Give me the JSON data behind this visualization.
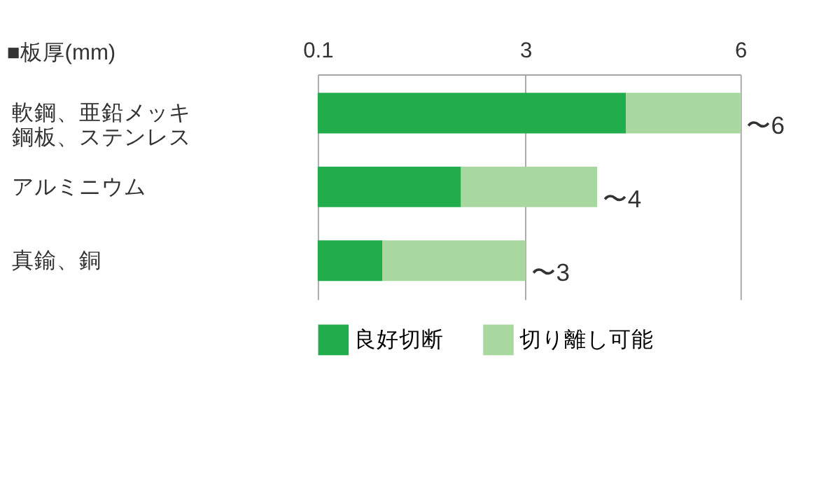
{
  "chart_data": {
    "type": "bar",
    "orientation": "horizontal",
    "stacked": true,
    "categories": [
      "軟鋼、亜鉛メッキ鋼板、ステンレス",
      "アルミニウム",
      "真鍮、銅"
    ],
    "series": [
      {
        "name": "良好切断",
        "color": "#21ad4b",
        "values": [
          4.4,
          2.1,
          1.0
        ]
      },
      {
        "name": "切り離し可能",
        "color": "#a8d8a0",
        "values": [
          1.6,
          1.9,
          2.0
        ]
      }
    ],
    "xlim": [
      0.1,
      6
    ],
    "xticks": [
      0.1,
      3,
      6
    ],
    "grid": "x",
    "legend": "bottom",
    "annotations": [
      "■板厚(mm)",
      {
        "text": "〜6",
        "x": 6,
        "y": "軟鋼、亜鉛メッキ鋼板、ステンレス"
      },
      {
        "text": "〜4",
        "x": 4,
        "y": "アルミニウム"
      },
      {
        "text": "〜3",
        "x": 3,
        "y": "真鍮、銅"
      }
    ]
  }
}
